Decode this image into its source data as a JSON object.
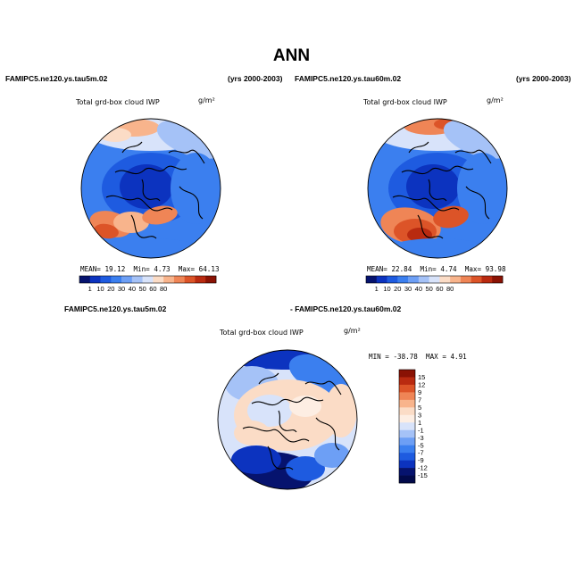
{
  "page": {
    "title": "ANN",
    "headers": {
      "left_case": "FAMIPC5.ne120.ys.tau5m.02",
      "left_years": "(yrs 2000-2003)",
      "right_case": "FAMIPC5.ne120.ys.tau60m.02",
      "right_years": "(yrs 2000-2003)",
      "diff_left": "FAMIPC5.ne120.ys.tau5m.02",
      "diff_right": "- FAMIPC5.ne120.ys.tau60m.02"
    }
  },
  "chart_data": [
    {
      "type": "heatmap",
      "projection": "north-polar-stereographic",
      "title": "Total grd-box cloud IWP",
      "units": "g/m²",
      "case": "FAMIPC5.ne120.ys.tau5m.02",
      "stats": {
        "mean_label": "MEAN=",
        "mean": "19.12",
        "min_label": "Min=",
        "min": "4.73",
        "max_label": "Max=",
        "max": "64.13"
      },
      "colorbar": {
        "orientation": "horizontal",
        "levels": [
          "1",
          "10",
          "20",
          "30",
          "40",
          "50",
          "60",
          "80"
        ],
        "colors": [
          "#06136e",
          "#0c33bf",
          "#1e5be0",
          "#3b7fef",
          "#6d9ff5",
          "#a5c2f7",
          "#d8e3fa",
          "#fbdcc6",
          "#f8b48c",
          "#ef8556",
          "#dc5428",
          "#b92a10",
          "#8a1204"
        ]
      }
    },
    {
      "type": "heatmap",
      "projection": "north-polar-stereographic",
      "title": "Total grd-box cloud IWP",
      "units": "g/m²",
      "case": "FAMIPC5.ne120.ys.tau60m.02",
      "stats": {
        "mean_label": "MEAN=",
        "mean": "22.84",
        "min_label": "Min=",
        "min": "4.74",
        "max_label": "Max=",
        "max": "93.98"
      },
      "colorbar": {
        "orientation": "horizontal",
        "levels": [
          "1",
          "10",
          "20",
          "30",
          "40",
          "50",
          "60",
          "80"
        ],
        "colors": [
          "#06136e",
          "#0c33bf",
          "#1e5be0",
          "#3b7fef",
          "#6d9ff5",
          "#a5c2f7",
          "#d8e3fa",
          "#fbdcc6",
          "#f8b48c",
          "#ef8556",
          "#dc5428",
          "#b92a10",
          "#8a1204"
        ]
      }
    },
    {
      "type": "heatmap",
      "projection": "north-polar-stereographic",
      "title": "Total grd-box cloud IWP",
      "units": "g/m²",
      "case": "difference",
      "stats": {
        "min_label": "MIN =",
        "min": "-38.78",
        "max_label": "MAX =",
        "max": "4.91"
      },
      "colorbar": {
        "orientation": "vertical",
        "levels": [
          "15",
          "12",
          "9",
          "7",
          "5",
          "3",
          "1",
          "-1",
          "-3",
          "-5",
          "-7",
          "-9",
          "-12",
          "-15"
        ],
        "colors": [
          "#8a1204",
          "#b92a10",
          "#dc5428",
          "#ef8556",
          "#f8b48c",
          "#fbdcc6",
          "#fdeee3",
          "#d8e3fa",
          "#a5c2f7",
          "#6d9ff5",
          "#3b7fef",
          "#1e5be0",
          "#0c33bf",
          "#06136e",
          "#020a4a"
        ]
      }
    }
  ]
}
